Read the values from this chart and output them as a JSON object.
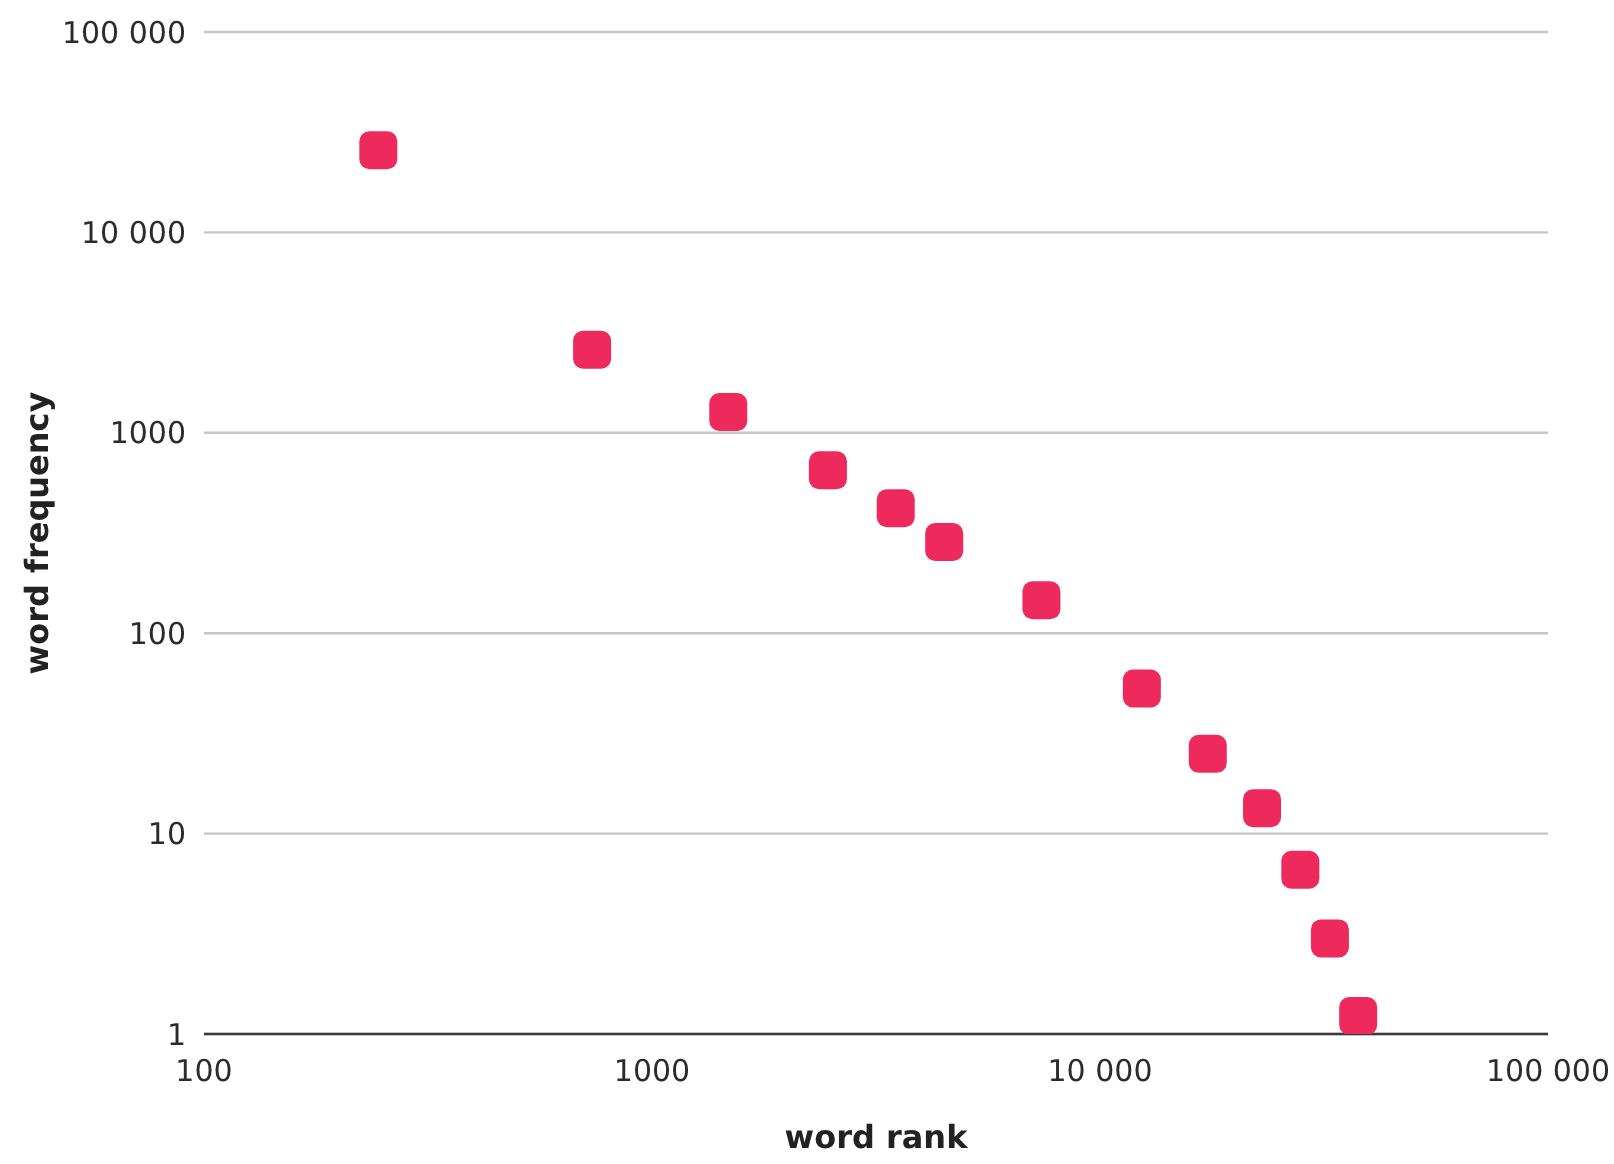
{
  "chart_data": {
    "type": "scatter",
    "xlabel": "word rank",
    "ylabel": "word frequency",
    "x": [
      245,
      735,
      1480,
      2470,
      3500,
      4490,
      7400,
      12400,
      17400,
      23000,
      28000,
      32600,
      37700
    ],
    "values": [
      25700,
      2600,
      1270,
      650,
      420,
      285,
      146,
      53,
      25,
      13.4,
      6.6,
      3.0,
      1.23
    ],
    "color": "#ee295b",
    "xlim": [
      100,
      100000
    ],
    "xticks": [
      100,
      1000,
      {
        "value": 10000,
        "label": "10 000"
      },
      {
        "value": 100000,
        "label": "100 000"
      }
    ],
    "ylim": [
      1,
      100000
    ],
    "yticks": [
      1,
      10,
      100,
      1000,
      {
        "value": 10000,
        "label": "10 000"
      },
      {
        "value": 100000,
        "label": "100 000"
      }
    ],
    "log": "xy",
    "grid": "y",
    "marker": "square"
  }
}
